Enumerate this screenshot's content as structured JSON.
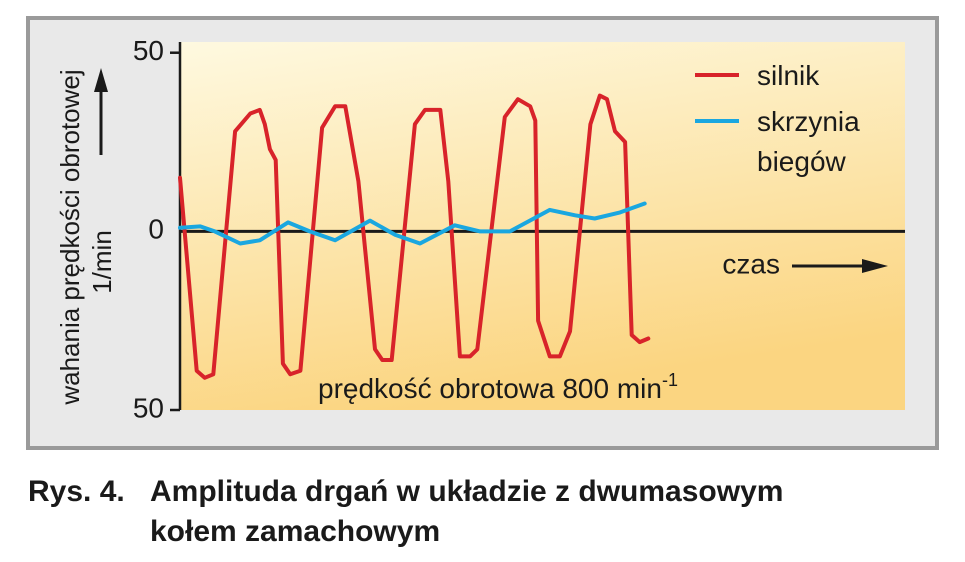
{
  "chart_data": {
    "type": "line",
    "y_label": "wahania prędkości obrotowej",
    "y_unit": "1/min",
    "x_label": "czas",
    "annotation": "prędkość obrotowa 800 min",
    "annotation_sup": "-1",
    "caption": {
      "label": "Rys. 4.",
      "lines": [
        "Amplituda drgań w układzie z dwumasowym",
        "kołem zamachowym"
      ]
    },
    "xlim": [
      0,
      100
    ],
    "ylim": [
      -50,
      53
    ],
    "yticks": [
      50,
      0,
      {
        "value": -50,
        "label": "50"
      }
    ],
    "grid": false,
    "legend": "top-right",
    "series": [
      {
        "name": "silnik",
        "color": "#d8232a",
        "x": [
          0,
          2.3,
          3.4,
          4.6,
          7.6,
          9.7,
          11.0,
          11.7,
          12.4,
          13.2,
          14.2,
          15.2,
          16.6,
          19.6,
          21.4,
          22.8,
          24.6,
          26.9,
          27.9,
          29.2,
          32.4,
          33.8,
          35.9,
          37.0,
          38.6,
          40.0,
          41.0,
          44.8,
          46.6,
          48.3,
          49.0,
          49.4,
          51.0,
          52.4,
          53.8,
          56.6,
          57.9,
          58.9,
          60.0,
          61.4,
          62.3,
          63.4,
          64.6
        ],
        "values": [
          15,
          -39,
          -41,
          -40,
          28,
          33,
          34,
          30,
          23,
          20,
          -37,
          -40,
          -39,
          29,
          35,
          35,
          14,
          -33,
          -36,
          -36,
          30,
          34,
          34,
          14,
          -35,
          -35,
          -33,
          32,
          37,
          35,
          31,
          -25,
          -35,
          -35,
          -28,
          30,
          38,
          37,
          28,
          25,
          -29,
          -31,
          -30
        ]
      },
      {
        "name": "skrzynia biegów",
        "color": "#1aa7e0",
        "x": [
          0,
          2.8,
          4.8,
          8.3,
          11.0,
          14.9,
          17.9,
          21.4,
          26.2,
          29.7,
          33.1,
          37.9,
          41.4,
          45.5,
          51.0,
          54.5,
          57.2,
          60.7,
          64.1
        ],
        "values": [
          1,
          1.4,
          0,
          -3.4,
          -2.5,
          2.5,
          0,
          -2.5,
          3,
          -1,
          -3.4,
          1.7,
          0,
          0,
          6,
          4.5,
          3.6,
          5.3,
          7.8
        ]
      }
    ]
  }
}
